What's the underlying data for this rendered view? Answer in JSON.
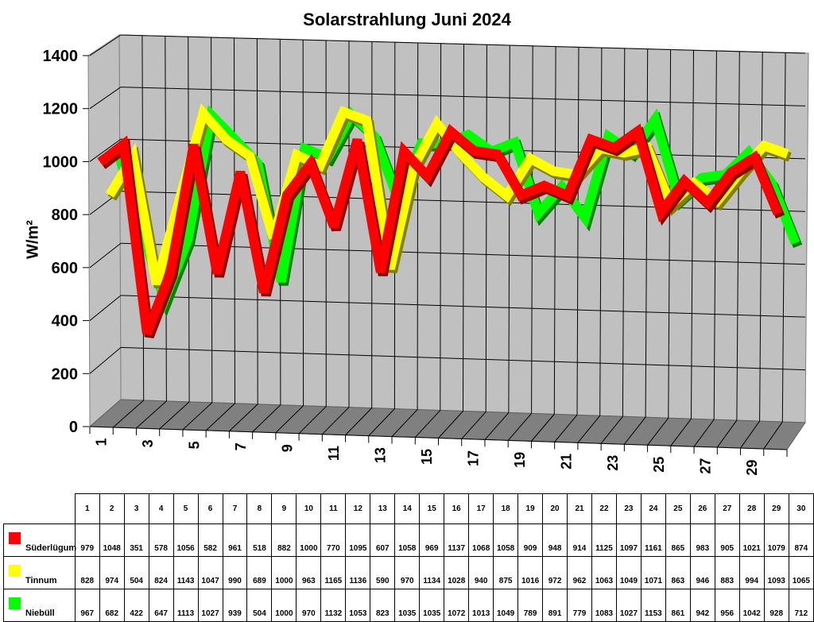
{
  "title": "Solarstrahlung Juni 2024",
  "y_axis_label": "W/m²",
  "chart_data": {
    "type": "line",
    "title": "Solarstrahlung Juni 2024",
    "xlabel": "",
    "ylabel": "W/m²",
    "ylim": [
      0,
      1400
    ],
    "yticks": [
      0,
      200,
      400,
      600,
      800,
      1000,
      1200,
      1400
    ],
    "x": [
      1,
      2,
      3,
      4,
      5,
      6,
      7,
      8,
      9,
      10,
      11,
      12,
      13,
      14,
      15,
      16,
      17,
      18,
      19,
      20,
      21,
      22,
      23,
      24,
      25,
      26,
      27,
      28,
      29,
      30
    ],
    "xtick_labels": [
      "1",
      "3",
      "5",
      "7",
      "9",
      "11",
      "13",
      "15",
      "17",
      "19",
      "21",
      "23",
      "25",
      "27",
      "29"
    ],
    "grid": true,
    "render": "3d-ribbon",
    "legend_position": "data-table",
    "series": [
      {
        "name": "Süderlügum",
        "color": "#ff0000",
        "shadow": "#8b0000",
        "values": [
          979,
          1048,
          351,
          578,
          1056,
          582,
          961,
          518,
          882,
          1000,
          770,
          1095,
          607,
          1058,
          969,
          1137,
          1068,
          1058,
          909,
          948,
          914,
          1125,
          1097,
          1161,
          865,
          983,
          905,
          1021,
          1079,
          874
        ]
      },
      {
        "name": "Tinnum",
        "color": "#ffff00",
        "shadow": "#808000",
        "values": [
          828,
          974,
          504,
          824,
          1143,
          1047,
          990,
          689,
          1000,
          963,
          1165,
          1136,
          590,
          970,
          1134,
          1028,
          940,
          875,
          1016,
          972,
          962,
          1063,
          1049,
          1071,
          863,
          946,
          883,
          994,
          1093,
          1065
        ]
      },
      {
        "name": "Niebüll",
        "color": "#00ff00",
        "shadow": "#008000",
        "values": [
          967,
          682,
          422,
          647,
          1113,
          1027,
          939,
          504,
          1000,
          970,
          1132,
          1053,
          823,
          1035,
          1035,
          1072,
          1013,
          1049,
          789,
          891,
          779,
          1083,
          1027,
          1153,
          861,
          942,
          956,
          1042,
          928,
          712
        ]
      }
    ]
  }
}
